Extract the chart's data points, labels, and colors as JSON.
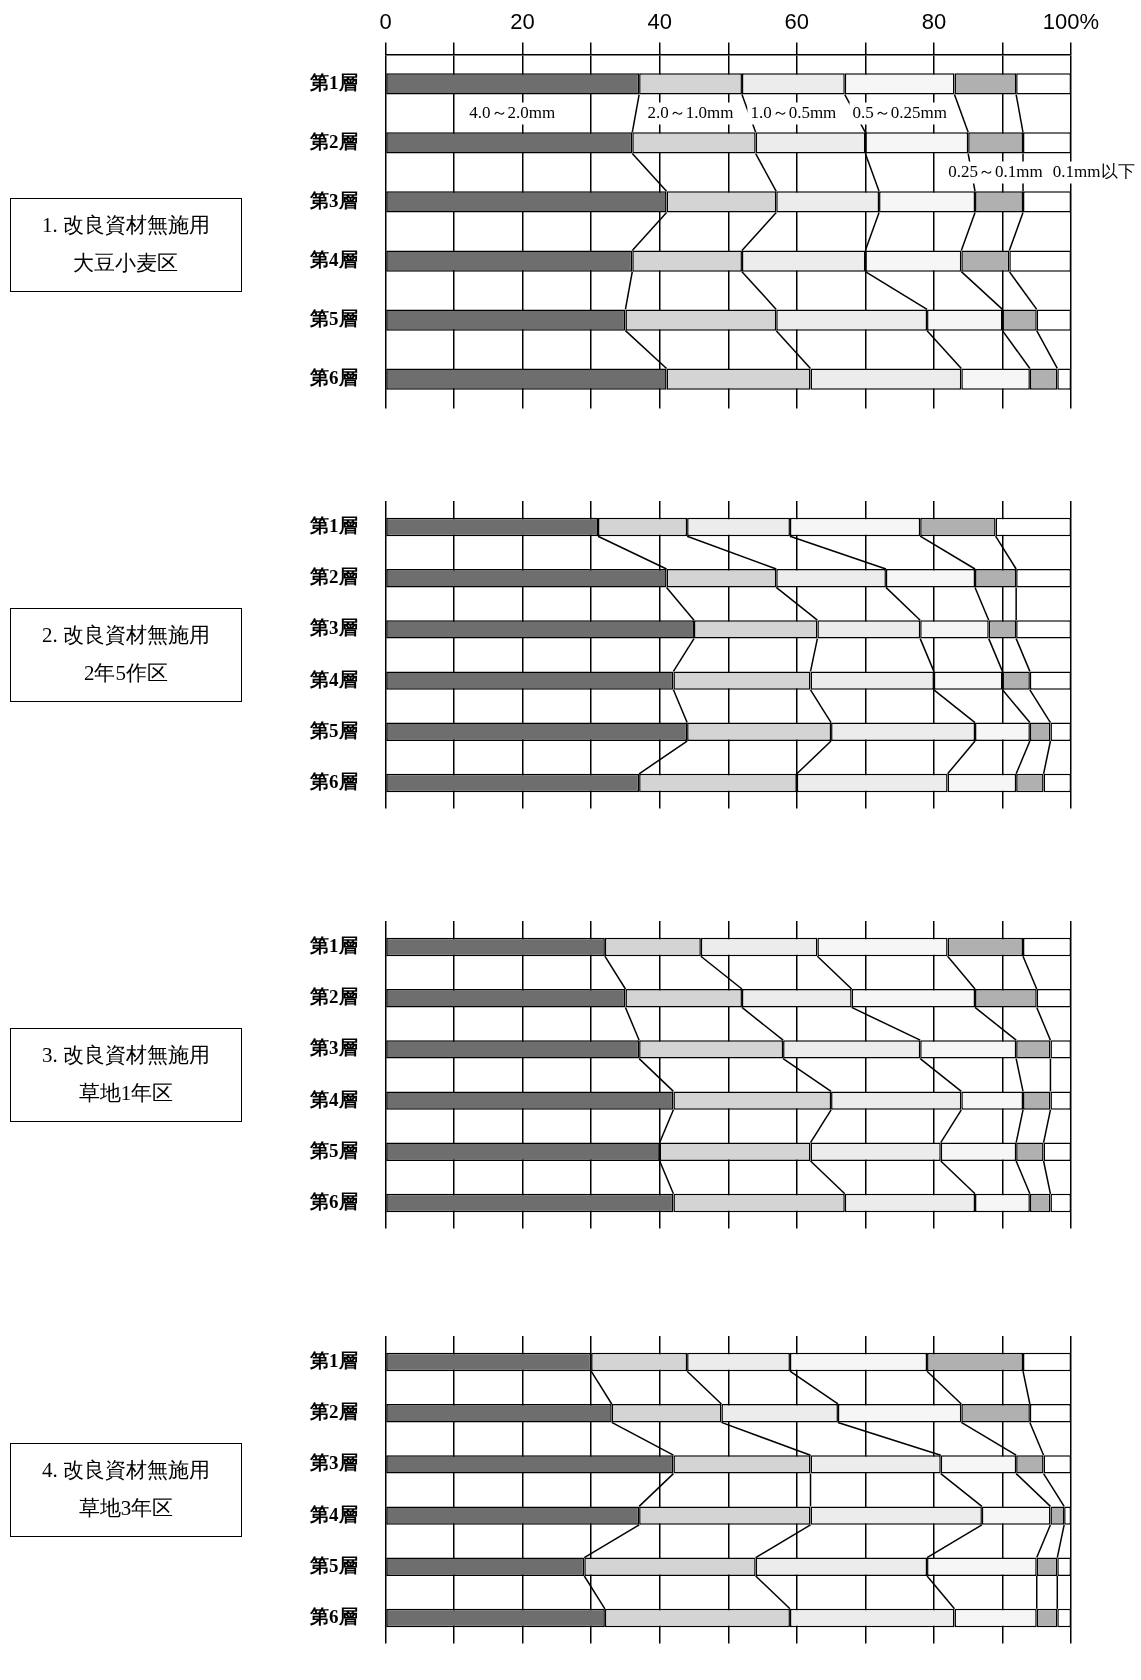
{
  "chart_data": [
    {
      "type": "bar",
      "orientation": "horizontal",
      "stacked": true,
      "title": "1. 改良資材無施用大豆小麦区",
      "categories": [
        "第1層",
        "第2層",
        "第3層",
        "第4層",
        "第5層",
        "第6層"
      ],
      "series": [
        {
          "name": "4.0～2.0mm",
          "color": "#6e6e6e",
          "values": [
            37,
            36,
            41,
            36,
            35,
            41
          ]
        },
        {
          "name": "2.0～1.0mm",
          "color": "#d4d4d4",
          "values": [
            15,
            18,
            16,
            16,
            22,
            21
          ]
        },
        {
          "name": "1.0～0.5mm",
          "color": "#ececec",
          "values": [
            15,
            16,
            15,
            18,
            22,
            22
          ]
        },
        {
          "name": "0.5～0.25mm",
          "color": "#f6f6f6",
          "values": [
            16,
            15,
            14,
            14,
            11,
            10
          ]
        },
        {
          "name": "0.25～0.1mm",
          "color": "#b0b0b0",
          "values": [
            9,
            8,
            7,
            7,
            5,
            4
          ]
        },
        {
          "name": "0.1mm以下",
          "color": "#ffffff",
          "values": [
            8,
            7,
            7,
            9,
            5,
            2
          ]
        }
      ],
      "xlim": [
        0,
        100
      ],
      "xticks": [
        0,
        {
          "value": 10,
          "label": null
        },
        20,
        {
          "value": 30,
          "label": null
        },
        40,
        {
          "value": 50,
          "label": null
        },
        60,
        {
          "value": 70,
          "label": null
        },
        80,
        {
          "value": 90,
          "label": null
        },
        {
          "value": 100,
          "label": "100%"
        }
      ],
      "grid": "x"
    },
    {
      "type": "bar",
      "orientation": "horizontal",
      "stacked": true,
      "title": "2. 改良資材無施用2年5作区",
      "categories": [
        "第1層",
        "第2層",
        "第3層",
        "第4層",
        "第5層",
        "第6層"
      ],
      "series": [
        {
          "color": "#6e6e6e",
          "values": [
            31,
            41,
            45,
            42,
            44,
            37
          ]
        },
        {
          "color": "#d4d4d4",
          "values": [
            13,
            16,
            18,
            20,
            21,
            23
          ]
        },
        {
          "color": "#ececec",
          "values": [
            15,
            16,
            15,
            18,
            21,
            22
          ]
        },
        {
          "color": "#f6f6f6",
          "values": [
            19,
            13,
            10,
            10,
            8,
            10
          ]
        },
        {
          "color": "#b0b0b0",
          "values": [
            11,
            6,
            4,
            4,
            3,
            4
          ]
        },
        {
          "color": "#ffffff",
          "values": [
            11,
            8,
            8,
            6,
            3,
            4
          ]
        }
      ],
      "xlim": [
        0,
        100
      ],
      "xticks": [
        {
          "value": 0,
          "label": null
        },
        {
          "value": 10,
          "label": null
        },
        {
          "value": 20,
          "label": null
        },
        {
          "value": 30,
          "label": null
        },
        {
          "value": 40,
          "label": null
        },
        {
          "value": 50,
          "label": null
        },
        {
          "value": 60,
          "label": null
        },
        {
          "value": 70,
          "label": null
        },
        {
          "value": 80,
          "label": null
        },
        {
          "value": 90,
          "label": null
        },
        {
          "value": 100,
          "label": null
        }
      ],
      "grid": "x",
      "tick_labels": "y"
    },
    {
      "type": "bar",
      "orientation": "horizontal",
      "stacked": true,
      "title": "3. 改良資材無施用草地1年区",
      "categories": [
        "第1層",
        "第2層",
        "第3層",
        "第4層",
        "第5層",
        "第6層"
      ],
      "series": [
        {
          "color": "#6e6e6e",
          "values": [
            32,
            35,
            37,
            42,
            40,
            42
          ]
        },
        {
          "color": "#d4d4d4",
          "values": [
            14,
            17,
            21,
            23,
            22,
            25
          ]
        },
        {
          "color": "#ececec",
          "values": [
            17,
            16,
            20,
            19,
            19,
            19
          ]
        },
        {
          "color": "#f6f6f6",
          "values": [
            19,
            18,
            14,
            9,
            11,
            8
          ]
        },
        {
          "color": "#b0b0b0",
          "values": [
            11,
            9,
            5,
            4,
            4,
            3
          ]
        },
        {
          "color": "#ffffff",
          "values": [
            7,
            5,
            3,
            3,
            4,
            3
          ]
        }
      ],
      "xlim": [
        0,
        100
      ],
      "xticks": [
        {
          "value": 0,
          "label": null
        },
        {
          "value": 10,
          "label": null
        },
        {
          "value": 20,
          "label": null
        },
        {
          "value": 30,
          "label": null
        },
        {
          "value": 40,
          "label": null
        },
        {
          "value": 50,
          "label": null
        },
        {
          "value": 60,
          "label": null
        },
        {
          "value": 70,
          "label": null
        },
        {
          "value": 80,
          "label": null
        },
        {
          "value": 90,
          "label": null
        },
        {
          "value": 100,
          "label": null
        }
      ],
      "grid": "x",
      "tick_labels": "y"
    },
    {
      "type": "bar",
      "orientation": "horizontal",
      "stacked": true,
      "title": "4. 改良資材無施用草地3年区",
      "categories": [
        "第1層",
        "第2層",
        "第3層",
        "第4層",
        "第5層",
        "第6層"
      ],
      "series": [
        {
          "color": "#6e6e6e",
          "values": [
            30,
            33,
            42,
            37,
            29,
            32
          ]
        },
        {
          "color": "#d4d4d4",
          "values": [
            14,
            16,
            20,
            25,
            25,
            27
          ]
        },
        {
          "color": "#ececec",
          "values": [
            15,
            17,
            19,
            25,
            25,
            24
          ]
        },
        {
          "color": "#f6f6f6",
          "values": [
            20,
            18,
            11,
            10,
            16,
            12
          ]
        },
        {
          "color": "#b0b0b0",
          "values": [
            14,
            10,
            4,
            2,
            3,
            3
          ]
        },
        {
          "color": "#ffffff",
          "values": [
            7,
            6,
            4,
            1,
            2,
            2
          ]
        }
      ],
      "xlim": [
        0,
        100
      ],
      "xticks": [
        {
          "value": 0,
          "label": null
        },
        {
          "value": 10,
          "label": null
        },
        {
          "value": 20,
          "label": null
        },
        {
          "value": 30,
          "label": null
        },
        {
          "value": 40,
          "label": null
        },
        {
          "value": 50,
          "label": null
        },
        {
          "value": 60,
          "label": null
        },
        {
          "value": 70,
          "label": null
        },
        {
          "value": 80,
          "label": null
        },
        {
          "value": 90,
          "label": null
        },
        {
          "value": 100,
          "label": null
        }
      ],
      "grid": "x",
      "tick_labels": "y"
    }
  ]
}
